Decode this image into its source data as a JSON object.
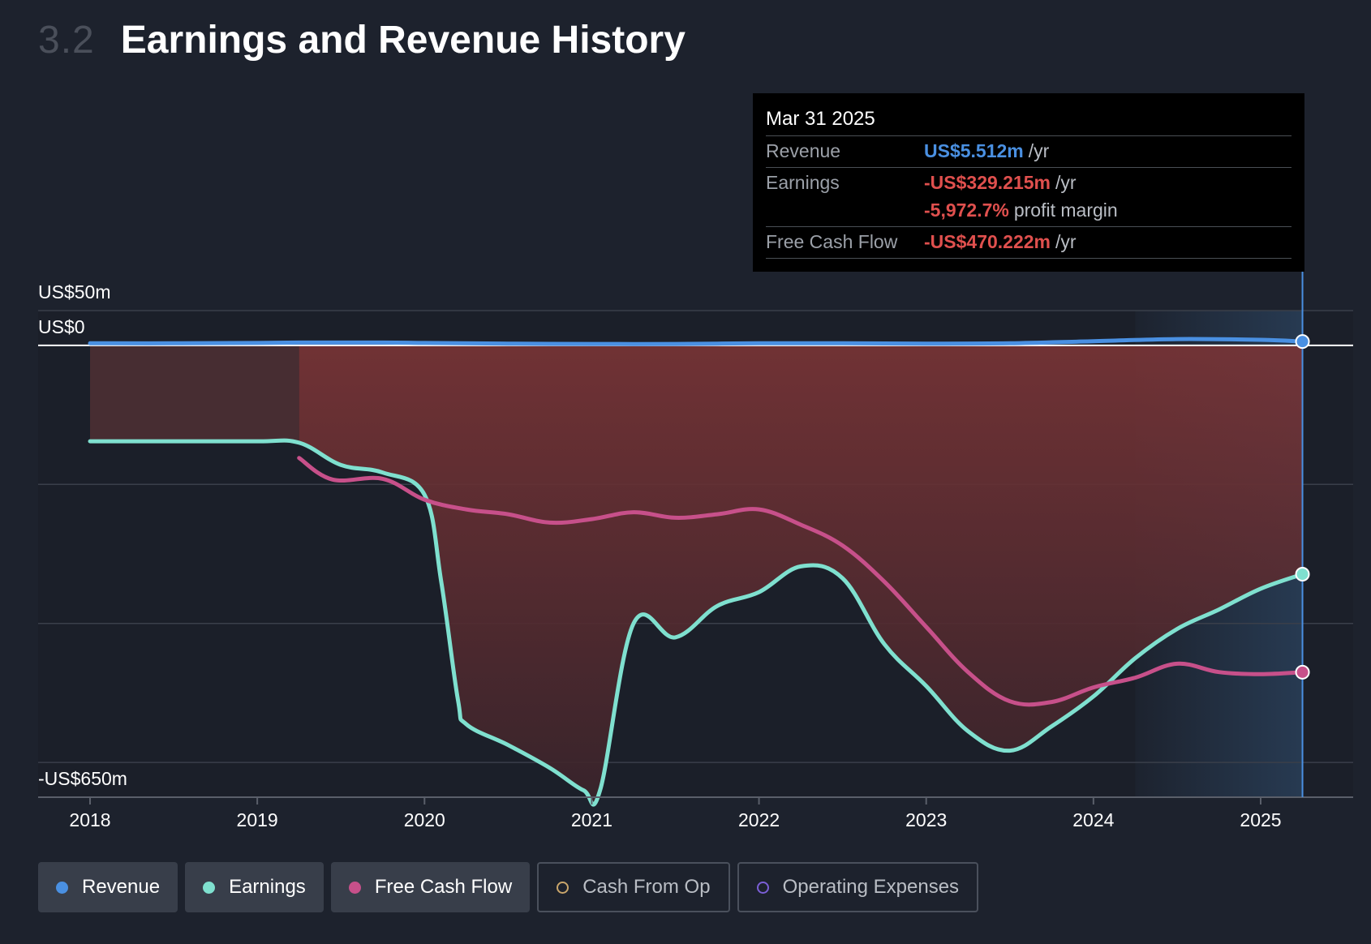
{
  "header": {
    "section_number": "3.2",
    "title": "Earnings and Revenue History"
  },
  "tooltip": {
    "date": "Mar 31 2025",
    "revenue_label": "Revenue",
    "revenue_value": "US$5.512m",
    "revenue_unit": "/yr",
    "earnings_label": "Earnings",
    "earnings_value": "-US$329.215m",
    "earnings_unit": "/yr",
    "margin_value": "-5,972.7%",
    "margin_unit": "profit margin",
    "fcf_label": "Free Cash Flow",
    "fcf_value": "-US$470.222m",
    "fcf_unit": "/yr"
  },
  "legend": [
    {
      "label": "Revenue",
      "color": "#4a90e2",
      "active": true
    },
    {
      "label": "Earnings",
      "color": "#7fe0cf",
      "active": true
    },
    {
      "label": "Free Cash Flow",
      "color": "#c7508a",
      "active": true
    },
    {
      "label": "Cash From Op",
      "color": "#c9a66b",
      "active": false
    },
    {
      "label": "Operating Expenses",
      "color": "#7b5fd6",
      "active": false
    }
  ],
  "chart_data": {
    "type": "line",
    "title": "Earnings and Revenue History",
    "y_tick_labels": [
      "US$50m",
      "US$0",
      "-US$650m"
    ],
    "y_ticks": [
      50,
      0,
      -650
    ],
    "ylim": [
      -650,
      50
    ],
    "x_tick_labels": [
      "2018",
      "2019",
      "2020",
      "2021",
      "2022",
      "2023",
      "2024",
      "2025"
    ],
    "x_ticks": [
      2018,
      2019,
      2020,
      2021,
      2022,
      2023,
      2024,
      2025
    ],
    "xlim": [
      2017.7,
      2025.55
    ],
    "grid": true,
    "legend_position": "bottom",
    "highlight_start": 2024.25,
    "cursor_x": 2025.25,
    "series": [
      {
        "name": "Revenue",
        "color": "#4a90e2",
        "x": [
          2018,
          2018.5,
          2019,
          2019.25,
          2019.75,
          2020,
          2020.5,
          2021,
          2021.5,
          2022,
          2022.5,
          2023,
          2023.5,
          2024,
          2024.5,
          2025,
          2025.25
        ],
        "y": [
          3,
          3,
          3.5,
          4,
          4,
          3.5,
          2.5,
          2,
          2,
          3,
          3,
          2.5,
          3,
          6,
          9,
          8,
          5.5
        ]
      },
      {
        "name": "Earnings",
        "color": "#7fe0cf",
        "x": [
          2018,
          2018.5,
          2019,
          2019.25,
          2019.5,
          2019.75,
          2020,
          2020.1,
          2020.2,
          2020.25,
          2020.5,
          2020.75,
          2020.95,
          2021.05,
          2021.25,
          2021.5,
          2021.75,
          2022,
          2022.25,
          2022.5,
          2022.75,
          2023,
          2023.25,
          2023.5,
          2023.75,
          2024,
          2024.25,
          2024.5,
          2024.75,
          2025,
          2025.25
        ],
        "y": [
          -138,
          -138,
          -138,
          -140,
          -172,
          -183,
          -215,
          -340,
          -510,
          -545,
          -575,
          -608,
          -640,
          -640,
          -400,
          -420,
          -375,
          -355,
          -318,
          -335,
          -430,
          -490,
          -555,
          -583,
          -548,
          -505,
          -450,
          -408,
          -380,
          -350,
          -329.215
        ]
      },
      {
        "name": "Free Cash Flow",
        "color": "#c7508a",
        "x": [
          2019.25,
          2019.45,
          2019.75,
          2020,
          2020.25,
          2020.5,
          2020.75,
          2021,
          2021.25,
          2021.5,
          2021.75,
          2022,
          2022.25,
          2022.5,
          2022.75,
          2023,
          2023.25,
          2023.5,
          2023.75,
          2024,
          2024.25,
          2024.5,
          2024.75,
          2025,
          2025.25
        ],
        "y": [
          -162,
          -193,
          -192,
          -222,
          -236,
          -243,
          -255,
          -250,
          -240,
          -248,
          -243,
          -236,
          -258,
          -288,
          -340,
          -405,
          -470,
          -512,
          -513,
          -492,
          -478,
          -458,
          -470,
          -473,
          -470.222
        ]
      }
    ]
  }
}
